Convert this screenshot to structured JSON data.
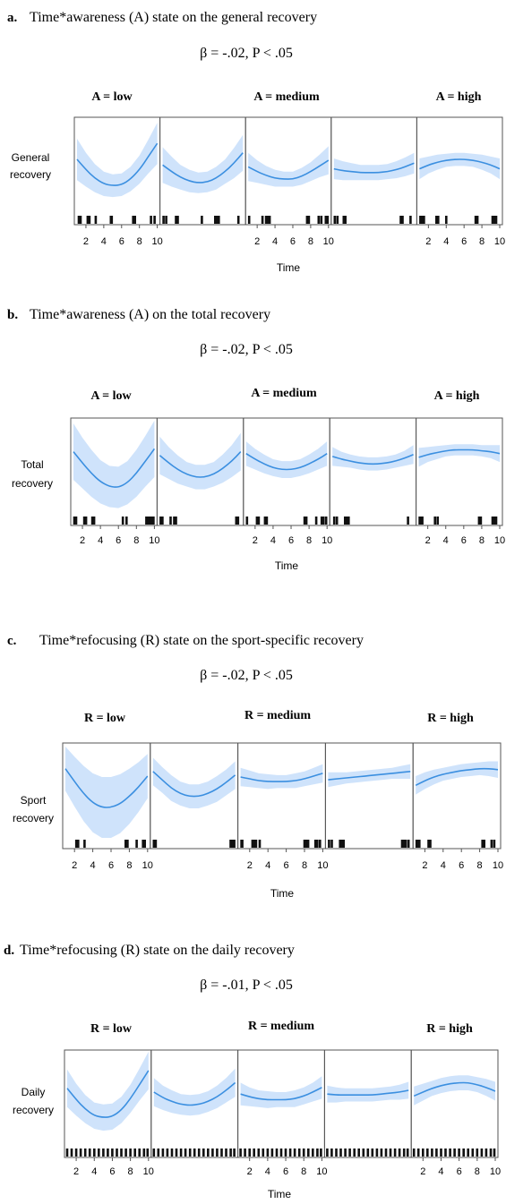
{
  "panels": [
    {
      "letter": "a.",
      "title": "Time*awareness (A) state on the general recovery",
      "stat": "β = -.02, P < .05",
      "level_labels": [
        "A = low",
        "A = medium",
        "A = high"
      ],
      "ylabel": [
        "General",
        "recovery"
      ],
      "xlabel": "Time"
    },
    {
      "letter": "b.",
      "title": "Time*awareness (A) on the total recovery",
      "stat": "β = -.02, P < .05",
      "level_labels": [
        "A = low",
        "A = medium",
        "A = high"
      ],
      "ylabel": [
        "Total",
        "recovery"
      ],
      "xlabel": "Time"
    },
    {
      "letter": "c.",
      "title": "Time*refocusing (R) state on the sport-specific recovery",
      "stat": "β = -.02, P < .05",
      "level_labels": [
        "R = low",
        "R = medium",
        "R = high"
      ],
      "ylabel": [
        "Sport",
        "recovery"
      ],
      "xlabel": "Time"
    },
    {
      "letter": "d.",
      "title": "Time*refocusing (R) state on the daily recovery",
      "stat": "β = -.01, P < .05",
      "level_labels": [
        "R = low",
        "R = medium",
        "R = high"
      ],
      "ylabel": [
        "Daily",
        "recovery"
      ],
      "xlabel": "Time"
    }
  ],
  "colors": {
    "line": "#3b8fe0",
    "band": "#cfe3fb",
    "frame": "#555555",
    "rug": "#111111"
  },
  "chart_data": [
    {
      "type": "line",
      "title": "Time*awareness (A) state on the general recovery",
      "xlabel": "Time",
      "ylabel": "General recovery",
      "x_ticks": [
        2,
        4,
        6,
        8,
        10
      ],
      "xlim": [
        1,
        10
      ],
      "ylim": [
        0,
        10
      ],
      "facets": [
        {
          "band_center": [
            5.9,
            4.8,
            3.9,
            3.3,
            3.1,
            3.2,
            3.8,
            4.8,
            6.2,
            7.6
          ],
          "band_half": [
            2.2,
            1.8,
            1.5,
            1.3,
            1.2,
            1.2,
            1.3,
            1.5,
            1.8,
            2.2
          ],
          "rug_x": [
            1.2,
            1.4,
            2.2,
            2.4,
            3.1,
            4.8,
            4.9,
            7.3,
            7.5,
            9.3,
            9.7
          ]
        },
        {
          "band_center": [
            5.3,
            4.6,
            4.0,
            3.6,
            3.4,
            3.5,
            3.9,
            4.6,
            5.5,
            6.6
          ],
          "band_half": [
            1.9,
            1.6,
            1.3,
            1.2,
            1.1,
            1.1,
            1.2,
            1.3,
            1.6,
            1.9
          ],
          "rug_x": [
            1.1,
            1.4,
            2.5,
            2.7,
            5.4,
            6.9,
            7.1,
            7.3,
            9.5
          ]
        },
        {
          "band_center": [
            5.1,
            4.6,
            4.2,
            3.9,
            3.8,
            3.8,
            4.1,
            4.6,
            5.2,
            5.8
          ],
          "band_half": [
            1.5,
            1.2,
            1.0,
            0.9,
            0.8,
            0.8,
            0.9,
            1.0,
            1.2,
            1.5
          ],
          "rug_x": [
            1.1,
            2.6,
            3.0,
            3.2,
            3.4,
            7.6,
            7.8,
            8.9,
            9.2,
            9.7,
            9.9
          ]
        },
        {
          "band_center": [
            4.9,
            4.7,
            4.6,
            4.5,
            4.5,
            4.5,
            4.6,
            4.8,
            5.1,
            5.5
          ],
          "band_half": [
            1.1,
            1.0,
            0.9,
            0.8,
            0.8,
            0.8,
            0.8,
            0.9,
            1.0,
            1.1
          ],
          "rug_x": [
            1.1,
            1.4,
            2.1,
            2.3,
            8.5,
            8.7,
            9.6
          ]
        },
        {
          "band_center": [
            4.9,
            5.3,
            5.6,
            5.8,
            5.9,
            5.9,
            5.8,
            5.6,
            5.3,
            4.9
          ],
          "band_half": [
            1.1,
            0.9,
            0.8,
            0.7,
            0.7,
            0.7,
            0.7,
            0.8,
            0.9,
            1.1
          ],
          "rug_x": [
            1.1,
            1.3,
            1.5,
            2.9,
            3.1,
            4.0,
            7.3,
            7.5,
            9.2,
            9.4,
            9.6
          ]
        }
      ]
    },
    {
      "type": "line",
      "title": "Time*awareness (A) on the total recovery",
      "xlabel": "Time",
      "ylabel": "Total recovery",
      "x_ticks": [
        2,
        4,
        6,
        8,
        10
      ],
      "xlim": [
        1,
        10
      ],
      "ylim": [
        0,
        10
      ],
      "facets": [
        {
          "band_center": [
            6.8,
            5.6,
            4.5,
            3.6,
            3.1,
            3.0,
            3.5,
            4.5,
            5.8,
            7.1
          ],
          "band_half": [
            3.0,
            2.7,
            2.5,
            2.3,
            2.2,
            2.2,
            2.3,
            2.5,
            2.7,
            3.0
          ],
          "rug_x": [
            1.1,
            1.3,
            2.2,
            2.4,
            3.1,
            3.3,
            6.5,
            6.9,
            9.1,
            9.3,
            9.5,
            9.7,
            9.9
          ]
        },
        {
          "band_center": [
            6.4,
            5.6,
            4.9,
            4.4,
            4.1,
            4.1,
            4.4,
            5.0,
            5.8,
            6.8
          ],
          "band_half": [
            2.0,
            1.7,
            1.5,
            1.3,
            1.3,
            1.3,
            1.3,
            1.5,
            1.7,
            2.0
          ],
          "rug_x": [
            1.1,
            1.3,
            2.2,
            2.6,
            2.8,
            9.5,
            9.7
          ]
        },
        {
          "band_center": [
            6.6,
            6.0,
            5.5,
            5.1,
            4.9,
            4.9,
            5.1,
            5.5,
            6.0,
            6.6
          ],
          "band_half": [
            1.3,
            1.1,
            1.0,
            0.9,
            0.9,
            0.9,
            0.9,
            1.0,
            1.1,
            1.3
          ],
          "rug_x": [
            1.1,
            2.2,
            2.4,
            3.1,
            3.3,
            7.5,
            7.7,
            8.8,
            9.4,
            9.6,
            9.9
          ]
        },
        {
          "band_center": [
            6.3,
            6.0,
            5.8,
            5.6,
            5.5,
            5.5,
            5.6,
            5.8,
            6.1,
            6.5
          ],
          "band_half": [
            1.0,
            0.8,
            0.7,
            0.7,
            0.7,
            0.7,
            0.7,
            0.7,
            0.8,
            1.0
          ],
          "rug_x": [
            1.2,
            1.5,
            2.4,
            2.6,
            2.8,
            9.4
          ]
        },
        {
          "band_center": [
            6.2,
            6.5,
            6.7,
            6.9,
            7.0,
            7.0,
            7.0,
            6.9,
            6.8,
            6.6
          ],
          "band_half": [
            1.0,
            0.8,
            0.7,
            0.6,
            0.6,
            0.6,
            0.6,
            0.6,
            0.7,
            0.9
          ],
          "rug_x": [
            1.1,
            1.2,
            1.3,
            1.4,
            2.8,
            3.1,
            7.7,
            7.9,
            9.2,
            9.4,
            9.6
          ]
        }
      ]
    },
    {
      "type": "line",
      "title": "Time*refocusing (R) state on the sport-specific recovery",
      "xlabel": "Time",
      "ylabel": "Sport recovery",
      "x_ticks": [
        2,
        4,
        6,
        8,
        10
      ],
      "xlim": [
        1,
        10
      ],
      "ylim": [
        0,
        10
      ],
      "facets": [
        {
          "band_center": [
            7.6,
            6.2,
            4.9,
            3.9,
            3.4,
            3.4,
            3.8,
            4.6,
            5.6,
            6.8
          ],
          "band_half": [
            2.4,
            2.7,
            3.0,
            3.2,
            3.3,
            3.3,
            3.2,
            3.0,
            2.7,
            2.4
          ],
          "rug_x": [
            2.2,
            2.4,
            3.1,
            7.6,
            7.8,
            8.8,
            9.5,
            9.7
          ]
        },
        {
          "band_center": [
            7.3,
            6.4,
            5.5,
            4.9,
            4.6,
            4.6,
            4.9,
            5.4,
            6.1,
            6.9
          ],
          "band_half": [
            1.5,
            1.4,
            1.4,
            1.3,
            1.3,
            1.3,
            1.3,
            1.4,
            1.4,
            1.5
          ],
          "rug_x": [
            1.1,
            1.3,
            9.5,
            9.7,
            9.9
          ]
        },
        {
          "band_center": [
            6.7,
            6.5,
            6.3,
            6.2,
            6.2,
            6.2,
            6.3,
            6.5,
            6.8,
            7.1
          ],
          "band_half": [
            1.0,
            0.9,
            0.8,
            0.8,
            0.7,
            0.7,
            0.8,
            0.8,
            0.9,
            1.0
          ],
          "rug_x": [
            1.1,
            1.2,
            2.3,
            2.5,
            2.7,
            3.1,
            8.0,
            8.2,
            8.4,
            9.2,
            9.4,
            9.7
          ]
        },
        {
          "band_center": [
            6.4,
            6.5,
            6.6,
            6.7,
            6.8,
            6.9,
            7.0,
            7.1,
            7.2,
            7.3
          ],
          "band_half": [
            0.8,
            0.7,
            0.6,
            0.6,
            0.6,
            0.6,
            0.6,
            0.6,
            0.7,
            0.8
          ],
          "rug_x": [
            1.1,
            1.4,
            2.3,
            2.5,
            2.7,
            9.1,
            9.3,
            9.5,
            9.8
          ]
        },
        {
          "band_center": [
            5.8,
            6.3,
            6.7,
            7.0,
            7.2,
            7.4,
            7.5,
            7.6,
            7.6,
            7.5
          ],
          "band_half": [
            1.0,
            0.9,
            0.8,
            0.7,
            0.7,
            0.7,
            0.7,
            0.7,
            0.8,
            0.9
          ],
          "rug_x": [
            1.1,
            1.2,
            1.4,
            2.4,
            2.6,
            8.3,
            8.5,
            9.3,
            9.6
          ]
        }
      ]
    },
    {
      "type": "line",
      "title": "Time*refocusing (R) state on the daily recovery",
      "xlabel": "Time",
      "ylabel": "Daily recovery",
      "x_ticks": [
        2,
        4,
        6,
        8,
        10
      ],
      "xlim": [
        1,
        10
      ],
      "ylim": [
        0,
        10
      ],
      "facets": [
        {
          "band_center": [
            6.3,
            5.1,
            4.1,
            3.4,
            3.2,
            3.3,
            4.0,
            5.2,
            6.7,
            8.2
          ],
          "band_half": [
            2.0,
            1.7,
            1.5,
            1.4,
            1.4,
            1.4,
            1.4,
            1.5,
            1.7,
            2.0
          ],
          "rug_x": [
            1.0,
            1.5,
            2.0,
            2.5,
            3.0,
            3.5,
            4.0,
            4.5,
            5.0,
            5.5,
            6.0,
            6.5,
            7.0,
            7.5,
            8.0,
            8.5,
            9.0,
            9.5,
            9.9
          ]
        },
        {
          "band_center": [
            5.9,
            5.3,
            4.9,
            4.6,
            4.5,
            4.6,
            4.9,
            5.4,
            6.1,
            6.9
          ],
          "band_half": [
            1.5,
            1.3,
            1.2,
            1.1,
            1.1,
            1.1,
            1.1,
            1.2,
            1.3,
            1.5
          ],
          "rug_x": [
            1.0,
            1.5,
            2.0,
            2.5,
            3.0,
            3.5,
            4.0,
            4.5,
            5.0,
            5.5,
            6.0,
            6.5,
            7.0,
            7.5,
            8.0,
            8.5,
            9.0,
            9.5,
            9.9
          ]
        },
        {
          "band_center": [
            5.7,
            5.4,
            5.2,
            5.1,
            5.1,
            5.1,
            5.2,
            5.5,
            5.9,
            6.4
          ],
          "band_half": [
            1.2,
            1.0,
            0.9,
            0.9,
            0.8,
            0.8,
            0.9,
            0.9,
            1.0,
            1.2
          ],
          "rug_x": [
            1.0,
            1.5,
            2.0,
            2.5,
            3.0,
            3.5,
            4.0,
            4.5,
            5.0,
            5.5,
            6.0,
            6.5,
            7.0,
            7.5,
            8.0,
            8.5,
            9.0,
            9.5,
            9.9
          ]
        },
        {
          "band_center": [
            5.7,
            5.6,
            5.6,
            5.6,
            5.6,
            5.6,
            5.7,
            5.8,
            5.9,
            6.1
          ],
          "band_half": [
            0.9,
            0.8,
            0.7,
            0.7,
            0.7,
            0.7,
            0.7,
            0.7,
            0.8,
            0.9
          ],
          "rug_x": [
            1.0,
            1.5,
            2.0,
            2.5,
            3.0,
            3.5,
            4.0,
            4.5,
            5.0,
            5.5,
            6.0,
            6.5,
            7.0,
            7.5,
            8.0,
            8.5,
            9.0,
            9.5,
            9.9
          ]
        },
        {
          "band_center": [
            5.5,
            5.9,
            6.3,
            6.6,
            6.8,
            6.9,
            6.9,
            6.7,
            6.4,
            6.0
          ],
          "band_half": [
            1.0,
            0.9,
            0.8,
            0.8,
            0.8,
            0.8,
            0.8,
            0.8,
            0.9,
            1.0
          ],
          "rug_x": [
            1.0,
            1.5,
            2.0,
            2.5,
            3.0,
            3.5,
            4.0,
            4.5,
            5.0,
            5.5,
            6.0,
            6.5,
            7.0,
            7.5,
            8.0,
            8.5,
            9.0,
            9.5,
            9.9
          ]
        }
      ]
    }
  ]
}
